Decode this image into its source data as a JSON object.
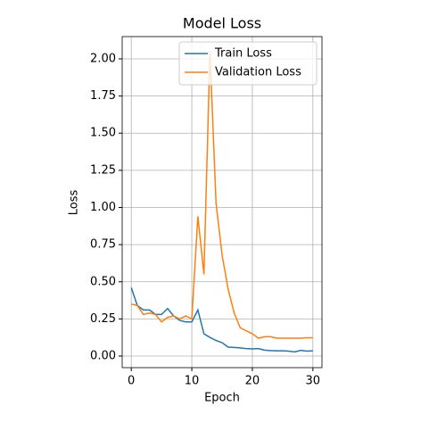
{
  "chart_data": {
    "type": "line",
    "title": "Model Loss",
    "xlabel": "Epoch",
    "ylabel": "Loss",
    "x": [
      0,
      1,
      2,
      3,
      4,
      5,
      6,
      7,
      8,
      9,
      10,
      11,
      12,
      13,
      14,
      15,
      16,
      17,
      18,
      19,
      20,
      21,
      22,
      23,
      24,
      25,
      26,
      27,
      28,
      29,
      30
    ],
    "series": [
      {
        "name": "Train Loss",
        "color": "#1f77b4",
        "values": [
          0.46,
          0.34,
          0.31,
          0.31,
          0.28,
          0.28,
          0.32,
          0.27,
          0.24,
          0.23,
          0.23,
          0.31,
          0.15,
          0.125,
          0.105,
          0.09,
          0.06,
          0.058,
          0.055,
          0.05,
          0.048,
          0.05,
          0.04,
          0.037,
          0.035,
          0.035,
          0.033,
          0.028,
          0.038,
          0.033,
          0.035
        ]
      },
      {
        "name": "Validation Loss",
        "color": "#ff7f0e",
        "values": [
          0.35,
          0.34,
          0.28,
          0.29,
          0.28,
          0.23,
          0.26,
          0.27,
          0.25,
          0.27,
          0.25,
          0.94,
          0.55,
          2.05,
          1.03,
          0.68,
          0.45,
          0.29,
          0.19,
          0.17,
          0.15,
          0.12,
          0.13,
          0.13,
          0.12,
          0.12,
          0.12,
          0.12,
          0.12,
          0.123,
          0.123
        ]
      }
    ],
    "xlim": [
      -1.5,
      31.5
    ],
    "xticks": [
      0,
      10,
      20,
      30
    ],
    "ylim": [
      -0.078,
      2.15
    ],
    "yticks": [
      {
        "value": 0,
        "label": "0.00"
      },
      {
        "value": 0.25,
        "label": "0.25"
      },
      {
        "value": 0.5,
        "label": "0.50"
      },
      {
        "value": 0.75,
        "label": "0.75"
      },
      {
        "value": 1,
        "label": "1.00"
      },
      {
        "value": 1.25,
        "label": "1.25"
      },
      {
        "value": 1.5,
        "label": "1.50"
      },
      {
        "value": 1.75,
        "label": "1.75"
      },
      {
        "value": 2,
        "label": "2.00"
      }
    ],
    "grid": true,
    "legend": "upper right"
  }
}
